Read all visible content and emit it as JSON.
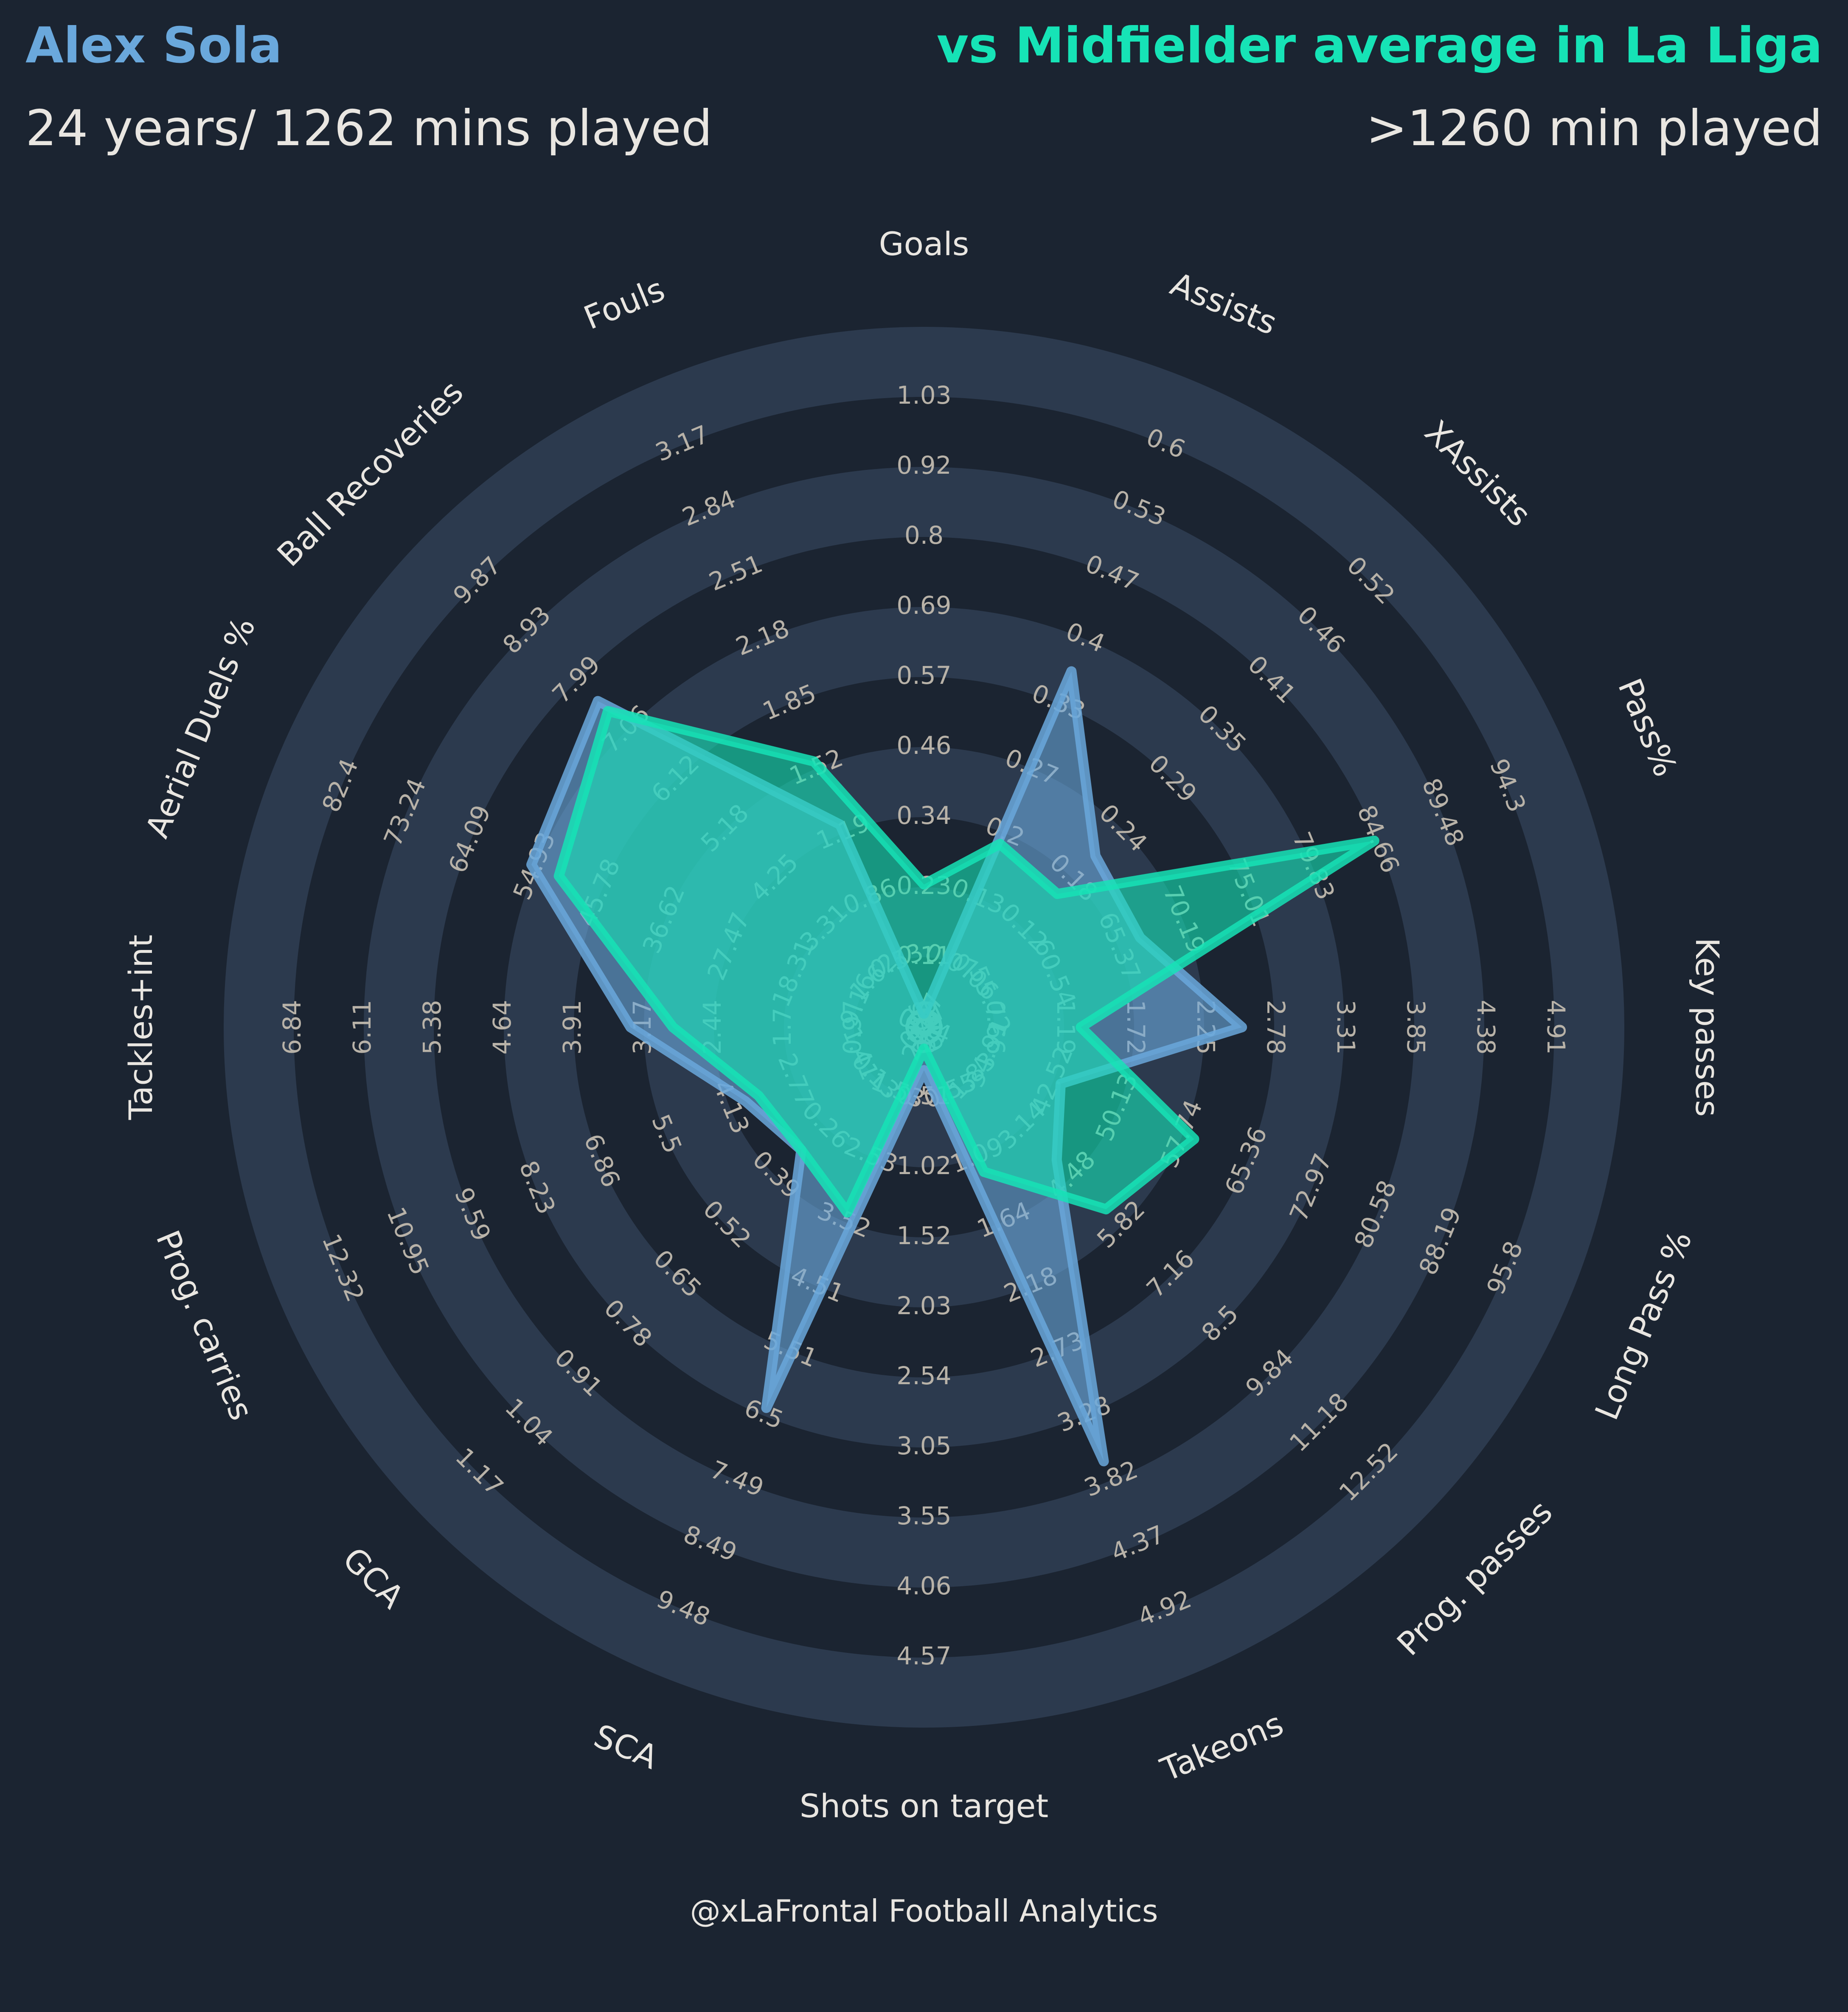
{
  "header": {
    "player_name": "Alex Sola",
    "player_sub": "24 years/ 1262 mins played",
    "comparison_title": "vs Midfielder average in La Liga",
    "comparison_sub": ">1260 min played"
  },
  "footer": {
    "credit": "@xLaFrontal Football Analytics"
  },
  "colors": {
    "background": "#1b2431",
    "ring_band": "#2c3a4e",
    "player": "#6aa8dc",
    "average": "#16e3b6",
    "label_text": "#e9e6e1",
    "tick_text": "#b8b2a8"
  },
  "chart_data": {
    "type": "radar",
    "legend": "none",
    "params": [
      {
        "label": "Goals",
        "ticks": [
          "0.0",
          "0.11",
          "0.23",
          "0.34",
          "0.46",
          "0.57",
          "0.69",
          "0.8",
          "0.92",
          "1.03"
        ]
      },
      {
        "label": "Assists",
        "ticks": [
          "0.0",
          "0.07",
          "0.13",
          "0.2",
          "0.27",
          "0.33",
          "0.4",
          "0.47",
          "0.53",
          "0.6"
        ]
      },
      {
        "label": "XAssists",
        "ticks": [
          "0.0",
          "0.06",
          "0.12",
          "0.18",
          "0.24",
          "0.29",
          "0.35",
          "0.41",
          "0.46",
          "0.52"
        ]
      },
      {
        "label": "Pass%",
        "ticks": [
          "50.9",
          "55.72",
          "60.54",
          "65.37",
          "70.19",
          "75.01",
          "79.83",
          "84.66",
          "89.48",
          "94.3"
        ]
      },
      {
        "label": "Key passes",
        "ticks": [
          "0.13",
          "0.66",
          "1.19",
          "1.72",
          "2.25",
          "2.78",
          "3.31",
          "3.85",
          "4.38",
          "4.91"
        ]
      },
      {
        "label": "Long Pass %",
        "ticks": [
          "27.47",
          "34.91",
          "42.52",
          "50.13",
          "57.74",
          "65.36",
          "72.97",
          "80.58",
          "88.19",
          "95.8"
        ]
      },
      {
        "label": "Prog. passes",
        "ticks": [
          "0.47",
          "1.83",
          "3.14",
          "4.48",
          "5.82",
          "7.16",
          "8.5",
          "9.84",
          "11.18",
          "12.52"
        ]
      },
      {
        "label": "Takeons",
        "ticks": [
          "0.0",
          "0.55",
          "1.09",
          "1.64",
          "2.18",
          "2.73",
          "3.28",
          "3.82",
          "4.37",
          "4.92"
        ]
      },
      {
        "label": "Shots on target",
        "ticks": [
          "0.0",
          "0.51",
          "1.02",
          "1.52",
          "2.03",
          "2.54",
          "3.05",
          "3.55",
          "4.06",
          "4.57"
        ]
      },
      {
        "label": "SCA",
        "ticks": [
          "0.54",
          "1.53",
          "2.53",
          "3.52",
          "4.51",
          "5.51",
          "6.5",
          "7.49",
          "8.49",
          "9.48"
        ]
      },
      {
        "label": "GCA",
        "ticks": [
          "0.0",
          "0.13",
          "0.26",
          "0.39",
          "0.52",
          "0.65",
          "0.78",
          "0.91",
          "1.04",
          "1.17"
        ]
      },
      {
        "label": "Prog. carries",
        "ticks": [
          "0.0",
          "1.41",
          "2.77",
          "4.13",
          "5.5",
          "6.86",
          "8.23",
          "9.59",
          "10.95",
          "12.32"
        ]
      },
      {
        "label": "Tackles+int",
        "ticks": [
          "0.23",
          "0.97",
          "1.7",
          "2.44",
          "3.17",
          "3.91",
          "4.64",
          "5.38",
          "6.11",
          "6.84"
        ]
      },
      {
        "label": "Aerial Duels %",
        "ticks": [
          "0.0",
          "9.16",
          "18.31",
          "27.47",
          "36.62",
          "45.78",
          "54.93",
          "64.09",
          "73.24",
          "82.4"
        ]
      },
      {
        "label": "Ball Recoveries",
        "ticks": [
          "0.0",
          "1.62",
          "3.31",
          "4.25",
          "5.18",
          "6.12",
          "7.06",
          "7.99",
          "8.93",
          "9.87"
        ]
      },
      {
        "label": "Fouls",
        "ticks": [
          "0.2",
          "0.53",
          "0.86",
          "1.19",
          "1.52",
          "1.85",
          "2.18",
          "2.51",
          "2.84",
          "3.17"
        ]
      }
    ],
    "series": [
      {
        "name": "Alex Sola",
        "values": [
          0.02,
          0.33,
          0.18,
          65.4,
          2.3,
          41.9,
          3.7,
          3.3,
          0.28,
          5.8,
          0.29,
          3.4,
          3.0,
          50.0,
          6.5,
          1.13
        ]
      },
      {
        "name": "Midfielder average",
        "values": [
          0.21,
          0.17,
          0.14,
          81.1,
          1.2,
          56.0,
          4.9,
          1.1,
          0.14,
          3.1,
          0.29,
          3.15,
          2.6,
          46.5,
          6.3,
          1.42
        ]
      }
    ]
  }
}
